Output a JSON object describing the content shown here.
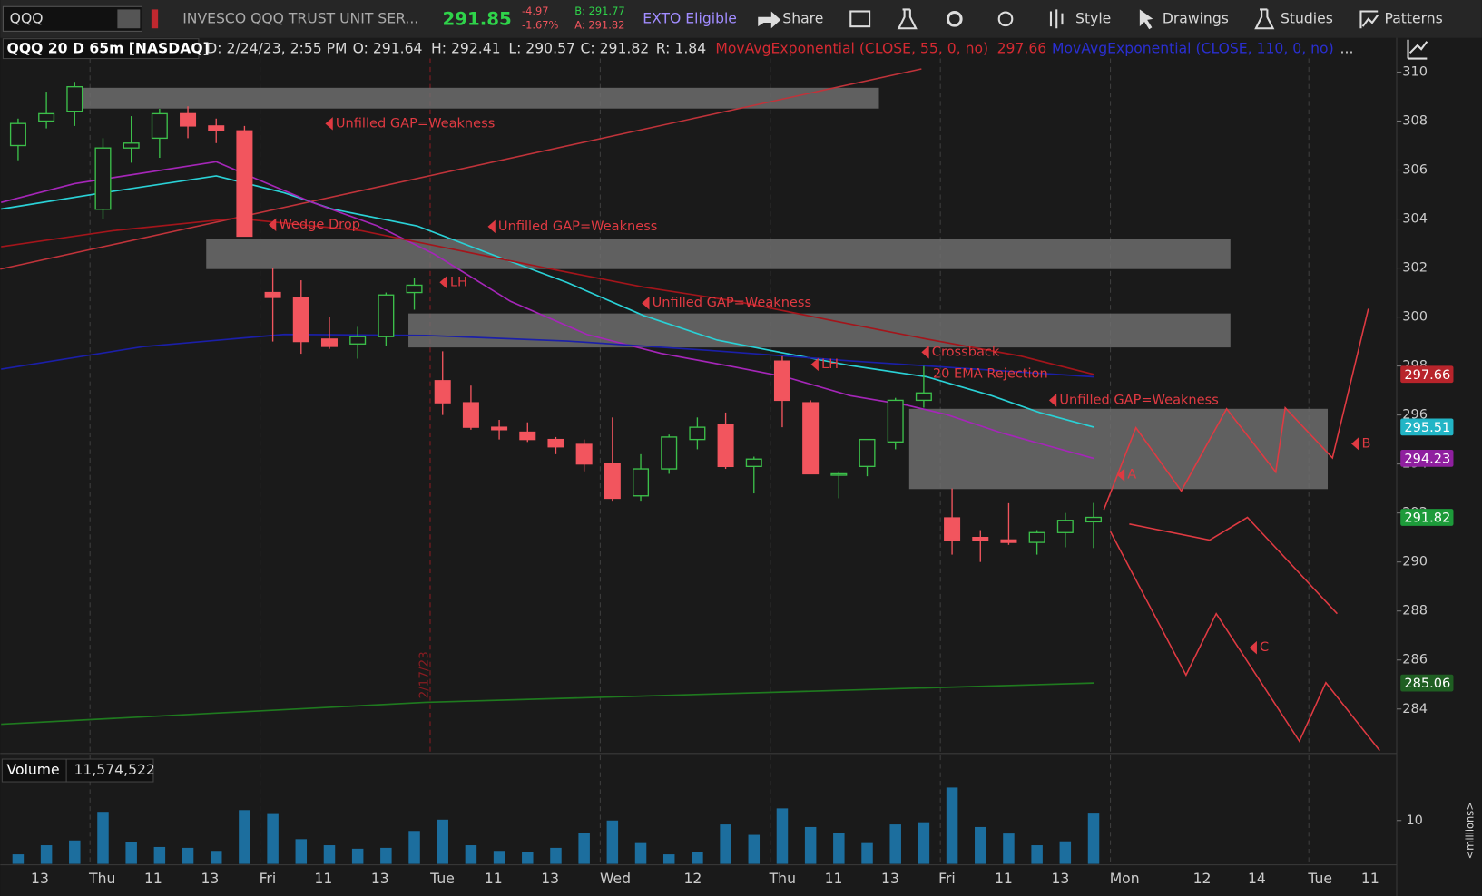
{
  "toolbar": {
    "symbol": "QQQ",
    "description": "INVESCO QQQ TRUST UNIT SER...",
    "last": "291.85",
    "change": "-4.97",
    "change_pct": "-1.67%",
    "bid": "B: 291.77",
    "ask": "A: 291.82",
    "exto": "EXTO Eligible",
    "buttons": [
      "Share",
      "Style",
      "Drawings",
      "Studies",
      "Patterns"
    ]
  },
  "info_bar": {
    "title": "QQQ 20 D 65m [NASDAQ]",
    "date": "D: 2/24/23, 2:55 PM",
    "open": "O: 291.64",
    "high": "H: 292.41",
    "low": "L: 290.57",
    "close": "C: 291.82",
    "range": "R: 1.84",
    "study1": "MovAvgExponential (CLOSE, 55, 0, no)",
    "study1_value": "297.66",
    "study2": "MovAvgExponential (CLOSE, 110, 0, no)",
    "more": "..."
  },
  "chart_data": {
    "type": "candlestick",
    "ylim": [
      282.3,
      311.4
    ],
    "yticks": [
      284,
      286,
      288,
      290,
      292,
      294,
      296,
      298,
      300,
      302,
      304,
      306,
      308,
      310
    ],
    "xlim": [
      -0.63,
      48.71
    ],
    "up_color": "#3cbf4a",
    "down_color": "#f2555e",
    "open": [
      307.0,
      308.0,
      308.4,
      304.4,
      306.9,
      307.3,
      308.3,
      307.8,
      307.6,
      301.0,
      300.8,
      299.1,
      298.9,
      299.2,
      301.0,
      297.4,
      296.5,
      295.5,
      295.3,
      295.0,
      294.8,
      294.0,
      292.7,
      293.8,
      295.0,
      295.6,
      293.9,
      298.2,
      296.5,
      293.6,
      293.9,
      294.9,
      296.6,
      291.8,
      291.0,
      290.9,
      290.8,
      291.2,
      291.64
    ],
    "high": [
      308.1,
      309.2,
      309.6,
      307.3,
      308.2,
      308.5,
      308.6,
      308.1,
      307.8,
      302.0,
      301.5,
      300.0,
      299.6,
      301.0,
      301.6,
      298.6,
      297.2,
      295.8,
      295.7,
      295.1,
      295.0,
      295.9,
      294.4,
      295.2,
      295.9,
      296.1,
      294.3,
      298.4,
      296.6,
      293.7,
      295.0,
      296.7,
      298.0,
      293.0,
      291.3,
      292.4,
      291.3,
      292.0,
      292.41
    ],
    "low": [
      306.4,
      307.7,
      307.8,
      304.0,
      306.3,
      306.5,
      307.3,
      307.1,
      303.3,
      299.0,
      298.5,
      298.7,
      298.3,
      298.8,
      300.3,
      296.0,
      295.4,
      295.0,
      294.9,
      294.4,
      293.7,
      292.5,
      292.5,
      293.6,
      294.6,
      293.8,
      292.8,
      295.5,
      293.6,
      292.6,
      293.5,
      294.6,
      296.3,
      290.3,
      290.0,
      290.7,
      290.3,
      290.6,
      290.57
    ],
    "close": [
      307.9,
      308.3,
      309.4,
      306.9,
      307.1,
      308.3,
      307.8,
      307.6,
      303.3,
      300.8,
      299.0,
      298.8,
      299.2,
      300.9,
      301.3,
      296.5,
      295.5,
      295.4,
      295.0,
      294.7,
      294.0,
      292.6,
      293.8,
      295.1,
      295.5,
      293.9,
      294.2,
      296.6,
      293.6,
      293.6,
      295.0,
      296.6,
      296.9,
      290.9,
      290.9,
      290.8,
      291.2,
      291.7,
      291.82
    ],
    "lines": [
      {
        "color": "#2ad1d6",
        "x": [
          -0.6,
          3.0,
          7.0,
          9.4,
          11.1,
          14.1,
          16.7,
          19.4,
          22.1,
          24.7,
          27.1,
          29.4,
          32.1,
          34.4,
          36.1,
          38
        ],
        "values": [
          304.41,
          305.07,
          305.76,
          305.07,
          304.41,
          303.72,
          302.57,
          301.41,
          300.06,
          299.06,
          298.52,
          298.02,
          297.56,
          296.79,
          296.1,
          295.51
        ]
      },
      {
        "color": "#a526b8",
        "x": [
          -0.6,
          2.0,
          7.0,
          8.4,
          10.4,
          12.7,
          14.7,
          17.4,
          20.1,
          22.7,
          25.4,
          27.1,
          29.4,
          31.4,
          32.8,
          34.8,
          38
        ],
        "values": [
          304.68,
          305.45,
          306.34,
          305.65,
          304.68,
          303.72,
          302.57,
          300.64,
          299.29,
          298.52,
          297.94,
          297.56,
          296.79,
          296.4,
          296.02,
          295.25,
          294.23
        ]
      },
      {
        "color": "#a3151b",
        "x": [
          -0.6,
          3.4,
          7.7,
          12.1,
          15.4,
          18.7,
          22.1,
          25.4,
          28.7,
          32.1,
          35.4,
          38
        ],
        "values": [
          302.87,
          303.53,
          304.03,
          303.53,
          302.76,
          301.99,
          301.22,
          300.64,
          299.87,
          299.1,
          298.41,
          297.66
        ]
      },
      {
        "color": "#1b1fa8",
        "x": [
          -0.6,
          4.4,
          9.4,
          14.4,
          19.4,
          24.4,
          29.4,
          34.4,
          38
        ],
        "values": [
          297.87,
          298.79,
          299.29,
          299.25,
          299.02,
          298.64,
          298.21,
          297.83,
          297.56
        ]
      },
      {
        "color": "#1f7a1f",
        "x": [
          -0.6,
          14.4,
          38
        ],
        "values": [
          283.38,
          284.27,
          285.06
        ]
      }
    ],
    "price_tags": [
      {
        "value": 297.66,
        "color": "#b8242b"
      },
      {
        "value": 295.51,
        "color": "#22b5c6"
      },
      {
        "value": 294.23,
        "color": "#8f1f9f"
      },
      {
        "value": 291.82,
        "color": "#1d9b3a"
      },
      {
        "value": 285.06,
        "color": "#1f5e22"
      }
    ],
    "x_labels": [
      "13",
      "Thu",
      "11",
      "13",
      "Fri",
      "11",
      "13",
      "Tue",
      "11",
      "13",
      "Wed",
      "12",
      "Thu",
      "11",
      "13",
      "Fri",
      "11",
      "13",
      "Mon",
      "12",
      "14",
      "Tue",
      "11"
    ],
    "date_marker": "2/17/23",
    "annotations": [
      "Unfilled GAP=Weakness",
      "Wedge Drop",
      "Unfilled GAP=Weakness",
      "LH",
      "Unfilled GAP=Weakness",
      "Crossback",
      "LH",
      "20 EMA Rejection",
      "Unfilled GAP=Weakness",
      "A",
      "B",
      "C"
    ],
    "volume": {
      "label": "Volume",
      "last": "11,574,522",
      "unit": "<millions>",
      "color": "#1c6e9e",
      "ylim": [
        0,
        18.5
      ],
      "yticks": [
        10
      ],
      "values": [
        2.2,
        4.3,
        5.4,
        12,
        5,
        3.9,
        3.7,
        3,
        12.4,
        11.5,
        5.7,
        4.3,
        3.5,
        3.7,
        7.6,
        10.2,
        4.3,
        3,
        2.8,
        3.7,
        7.2,
        10,
        4.8,
        2.2,
        2.8,
        9.1,
        6.7,
        12.8,
        8.5,
        7.2,
        4.8,
        9.1,
        9.6,
        17.6,
        8.5,
        7,
        4.3,
        5.2,
        11.6
      ]
    }
  }
}
